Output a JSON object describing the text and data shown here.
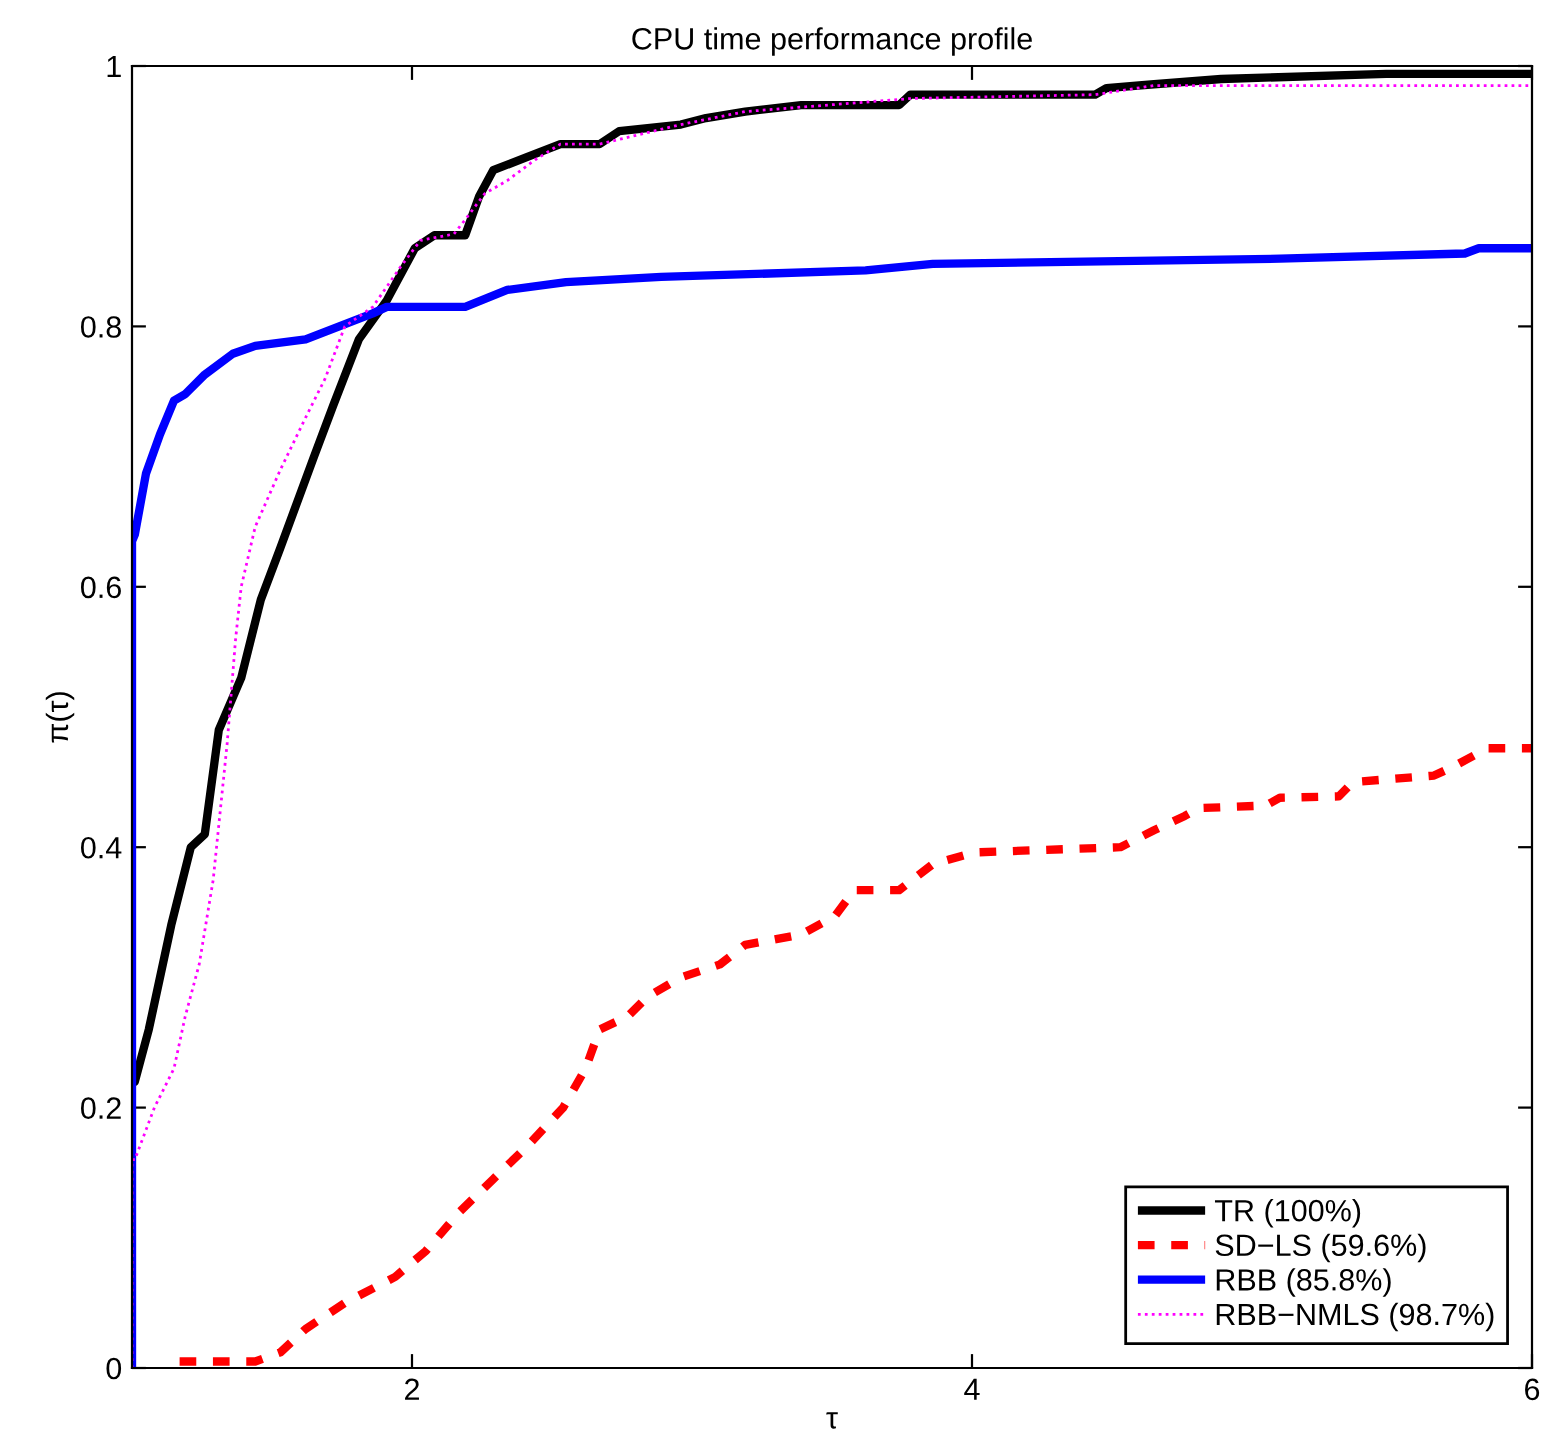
{
  "chart_data": {
    "type": "line",
    "title": "CPU time performance profile",
    "xlabel": "τ",
    "ylabel": "π(τ)",
    "xlim": [
      1,
      6
    ],
    "xticks": [
      2,
      4,
      6
    ],
    "ylim": [
      0,
      1
    ],
    "yticks": [
      0,
      0.2,
      0.4,
      0.6,
      0.8,
      1
    ],
    "grid": false,
    "legend": "bottom right",
    "marker": "none",
    "series": [
      {
        "name": "TR (100%)",
        "color": "#000000",
        "line_style": "solid",
        "x": [
          1,
          1.01,
          1.06,
          1.14,
          1.21,
          1.26,
          1.31,
          1.39,
          1.46,
          1.53,
          1.65,
          1.72,
          1.81,
          1.91,
          1.96,
          2.01,
          2.08,
          2.19,
          2.24,
          2.29,
          2.41,
          2.53,
          2.67,
          2.74,
          2.96,
          3.05,
          3.19,
          3.39,
          3.74,
          3.78,
          4.44,
          4.48,
          4.65,
          4.89,
          5.48,
          6
        ],
        "values": [
          0.22,
          0.22,
          0.26,
          0.34,
          0.4,
          0.41,
          0.49,
          0.53,
          0.59,
          0.63,
          0.7,
          0.74,
          0.79,
          0.82,
          0.84,
          0.86,
          0.87,
          0.87,
          0.9,
          0.92,
          0.93,
          0.94,
          0.94,
          0.95,
          0.955,
          0.96,
          0.965,
          0.97,
          0.97,
          0.978,
          0.978,
          0.983,
          0.986,
          0.99,
          0.994,
          0.994
        ]
      },
      {
        "name": "SD−LS (59.6%)",
        "color": "#ff0000",
        "line_style": "dashed",
        "x": [
          1.17,
          1.44,
          1.53,
          1.62,
          1.76,
          1.94,
          2.05,
          2.17,
          2.29,
          2.41,
          2.54,
          2.62,
          2.67,
          2.77,
          2.84,
          2.96,
          3.1,
          3.19,
          3.39,
          3.51,
          3.58,
          3.74,
          3.86,
          3.96,
          4.01,
          4.53,
          4.65,
          4.76,
          4.81,
          5.05,
          5.1,
          5.31,
          5.36,
          5.65,
          5.72,
          5.84,
          6
        ],
        "values": [
          0.005,
          0.005,
          0.012,
          0.03,
          0.05,
          0.07,
          0.09,
          0.12,
          0.145,
          0.17,
          0.2,
          0.23,
          0.26,
          0.27,
          0.285,
          0.3,
          0.31,
          0.325,
          0.333,
          0.347,
          0.367,
          0.367,
          0.387,
          0.393,
          0.396,
          0.4,
          0.413,
          0.424,
          0.43,
          0.432,
          0.438,
          0.439,
          0.45,
          0.455,
          0.462,
          0.476,
          0.476
        ]
      },
      {
        "name": "RBB (85.8%)",
        "color": "#0000ff",
        "line_style": "solid",
        "x": [
          1,
          1,
          1.01,
          1.05,
          1.1,
          1.15,
          1.19,
          1.26,
          1.36,
          1.44,
          1.62,
          1.74,
          1.86,
          1.91,
          2.19,
          2.34,
          2.55,
          2.89,
          3.62,
          3.86,
          5.1,
          5.76,
          5.81,
          6
        ],
        "values": [
          0,
          0.635,
          0.64,
          0.687,
          0.717,
          0.743,
          0.748,
          0.763,
          0.779,
          0.785,
          0.79,
          0.8,
          0.81,
          0.815,
          0.815,
          0.828,
          0.834,
          0.838,
          0.843,
          0.848,
          0.852,
          0.856,
          0.86,
          0.86
        ]
      },
      {
        "name": "RBB−NMLS (98.7%)",
        "color": "#ff00ff",
        "line_style": "dotted",
        "x": [
          1,
          1,
          1.01,
          1.08,
          1.15,
          1.19,
          1.24,
          1.29,
          1.34,
          1.37,
          1.39,
          1.44,
          1.53,
          1.62,
          1.69,
          1.76,
          1.86,
          1.96,
          2.03,
          2.15,
          2.19,
          2.26,
          2.34,
          2.44,
          2.53,
          2.67,
          2.96,
          3.19,
          3.78,
          4.44,
          4.65,
          6
        ],
        "values": [
          0,
          0.16,
          0.16,
          0.2,
          0.23,
          0.27,
          0.31,
          0.375,
          0.48,
          0.56,
          0.6,
          0.646,
          0.69,
          0.73,
          0.76,
          0.8,
          0.815,
          0.846,
          0.866,
          0.871,
          0.882,
          0.902,
          0.912,
          0.928,
          0.94,
          0.94,
          0.955,
          0.965,
          0.975,
          0.978,
          0.985,
          0.985
        ]
      }
    ]
  }
}
